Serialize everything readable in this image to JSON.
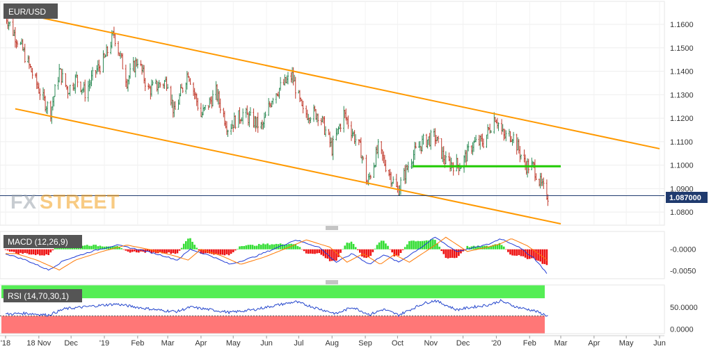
{
  "symbol": "EUR/USD",
  "logo": {
    "fx": "FX",
    "street": "STREET"
  },
  "price_tag": "1.087000",
  "colors": {
    "up": "#2e8b57",
    "down": "#c0392b",
    "channel": "#ff9900",
    "support": "#22cc00",
    "price_line": "#1f3a6e",
    "macd_line": "#1f3ad6",
    "signal_line": "#ff7700",
    "hist_pos": "#33dd33",
    "hist_neg": "#ee1111",
    "rsi_line": "#2244cc",
    "rsi_over": "#55ee55",
    "rsi_under": "#ff7777"
  },
  "x_axis": {
    "labels": [
      "'18",
      "18 Nov",
      "Dec",
      "'19",
      "Feb",
      "Mar",
      "Apr",
      "May",
      "Jun",
      "Jul",
      "Aug",
      "Sep",
      "Oct",
      "Nov",
      "Dec",
      "'20",
      "Feb",
      "Mar",
      "Apr",
      "May",
      "Jun"
    ]
  },
  "chart_data": [
    {
      "type": "candlestick",
      "title": "EUR/USD",
      "x_range": [
        "2018-10-01",
        "2020-06-01"
      ],
      "ylim": [
        1.075,
        1.168
      ],
      "y_ticks": [
        "1.1600",
        "1.1500",
        "1.1400",
        "1.1300",
        "1.1200",
        "1.1100",
        "1.1000",
        "1.0900",
        "1.0800"
      ],
      "price_path": [
        [
          "2018-10-01",
          1.164
        ],
        [
          "2018-10-08",
          1.157
        ],
        [
          "2018-10-16",
          1.15
        ],
        [
          "2018-10-25",
          1.14
        ],
        [
          "2018-11-05",
          1.128
        ],
        [
          "2018-11-12",
          1.123
        ],
        [
          "2018-11-20",
          1.14
        ],
        [
          "2018-11-28",
          1.132
        ],
        [
          "2018-12-06",
          1.137
        ],
        [
          "2018-12-14",
          1.131
        ],
        [
          "2018-12-24",
          1.14
        ],
        [
          "2019-01-01",
          1.145
        ],
        [
          "2019-01-10",
          1.156
        ],
        [
          "2019-01-22",
          1.136
        ],
        [
          "2019-02-01",
          1.145
        ],
        [
          "2019-02-11",
          1.132
        ],
        [
          "2019-02-20",
          1.134
        ],
        [
          "2019-03-01",
          1.136
        ],
        [
          "2019-03-07",
          1.122
        ],
        [
          "2019-03-20",
          1.14
        ],
        [
          "2019-04-01",
          1.121
        ],
        [
          "2019-04-15",
          1.131
        ],
        [
          "2019-04-26",
          1.116
        ],
        [
          "2019-05-10",
          1.122
        ],
        [
          "2019-05-28",
          1.116
        ],
        [
          "2019-06-07",
          1.13
        ],
        [
          "2019-06-25",
          1.138
        ],
        [
          "2019-07-05",
          1.122
        ],
        [
          "2019-07-20",
          1.122
        ],
        [
          "2019-08-01",
          1.107
        ],
        [
          "2019-08-12",
          1.122
        ],
        [
          "2019-08-28",
          1.106
        ],
        [
          "2019-09-03",
          1.092
        ],
        [
          "2019-09-13",
          1.107
        ],
        [
          "2019-10-01",
          1.089
        ],
        [
          "2019-10-15",
          1.104
        ],
        [
          "2019-10-25",
          1.11
        ],
        [
          "2019-11-05",
          1.112
        ],
        [
          "2019-11-15",
          1.101
        ],
        [
          "2019-11-29",
          1.1
        ],
        [
          "2019-12-10",
          1.109
        ],
        [
          "2019-12-20",
          1.11
        ],
        [
          "2019-12-31",
          1.121
        ],
        [
          "2020-01-08",
          1.112
        ],
        [
          "2020-01-16",
          1.113
        ],
        [
          "2020-01-28",
          1.1
        ],
        [
          "2020-02-05",
          1.099
        ],
        [
          "2020-02-12",
          1.091
        ],
        [
          "2020-02-18",
          1.087
        ]
      ],
      "channel_lines": [
        {
          "from": [
            "2018-10-01",
            1.166
          ],
          "to": [
            "2020-06-01",
            1.107
          ]
        },
        {
          "from": [
            "2018-10-10",
            1.124
          ],
          "to": [
            "2020-03-01",
            1.075
          ]
        }
      ],
      "support_line": {
        "from": "2019-10-15",
        "to": "2020-03-01",
        "value": 1.0995
      },
      "current_price": 1.087
    },
    {
      "type": "line",
      "title": "MACD (12,26,9)",
      "ylim": [
        -0.0065,
        0.0035
      ],
      "y_ticks": [
        "-0.0000",
        "-0.0050"
      ],
      "series_shape": [
        [
          "2018-10-01",
          -0.001
        ],
        [
          "2018-10-20",
          -0.0025
        ],
        [
          "2018-11-10",
          -0.0048
        ],
        [
          "2018-11-25",
          -0.0025
        ],
        [
          "2018-12-20",
          -0.0005
        ],
        [
          "2019-01-12",
          0.001
        ],
        [
          "2019-02-05",
          -0.0002
        ],
        [
          "2019-02-25",
          -0.0015
        ],
        [
          "2019-03-10",
          -0.0025
        ],
        [
          "2019-03-22",
          0.0
        ],
        [
          "2019-04-10",
          -0.0015
        ],
        [
          "2019-04-28",
          -0.0035
        ],
        [
          "2019-05-20",
          -0.0018
        ],
        [
          "2019-06-12",
          0.0005
        ],
        [
          "2019-06-28",
          0.0022
        ],
        [
          "2019-07-20",
          0.0005
        ],
        [
          "2019-08-05",
          -0.003
        ],
        [
          "2019-08-20",
          -0.001
        ],
        [
          "2019-09-05",
          -0.0035
        ],
        [
          "2019-09-18",
          -0.0012
        ],
        [
          "2019-10-02",
          -0.003
        ],
        [
          "2019-10-25",
          0.0008
        ],
        [
          "2019-11-05",
          0.0028
        ],
        [
          "2019-11-25",
          -0.0005
        ],
        [
          "2019-12-10",
          0.0003
        ],
        [
          "2019-12-25",
          0.0012
        ],
        [
          "2020-01-05",
          0.0025
        ],
        [
          "2020-01-20",
          0.0008
        ],
        [
          "2020-02-05",
          -0.002
        ],
        [
          "2020-02-18",
          -0.0058
        ]
      ],
      "signal_lag_days": 10
    },
    {
      "type": "line",
      "title": "RSI (14,70,30,1)",
      "ylim": [
        -10,
        100
      ],
      "y_ticks": [
        "50.0000",
        "0.0000"
      ],
      "levels": {
        "upper": 70,
        "lower": 30
      },
      "series_shape": [
        [
          "2018-10-01",
          34
        ],
        [
          "2018-10-20",
          36
        ],
        [
          "2018-11-10",
          32
        ],
        [
          "2018-11-25",
          46
        ],
        [
          "2018-12-20",
          52
        ],
        [
          "2019-01-12",
          57
        ],
        [
          "2019-02-05",
          48
        ],
        [
          "2019-02-25",
          42
        ],
        [
          "2019-03-10",
          40
        ],
        [
          "2019-03-22",
          50
        ],
        [
          "2019-04-10",
          44
        ],
        [
          "2019-04-28",
          38
        ],
        [
          "2019-05-20",
          44
        ],
        [
          "2019-06-12",
          55
        ],
        [
          "2019-06-28",
          62
        ],
        [
          "2019-07-20",
          46
        ],
        [
          "2019-08-05",
          35
        ],
        [
          "2019-08-20",
          50
        ],
        [
          "2019-09-05",
          33
        ],
        [
          "2019-09-18",
          45
        ],
        [
          "2019-10-02",
          32
        ],
        [
          "2019-10-25",
          58
        ],
        [
          "2019-11-05",
          65
        ],
        [
          "2019-11-25",
          44
        ],
        [
          "2019-12-10",
          50
        ],
        [
          "2019-12-25",
          55
        ],
        [
          "2020-01-05",
          64
        ],
        [
          "2020-01-20",
          50
        ],
        [
          "2020-02-05",
          42
        ],
        [
          "2020-02-18",
          30
        ]
      ]
    }
  ]
}
